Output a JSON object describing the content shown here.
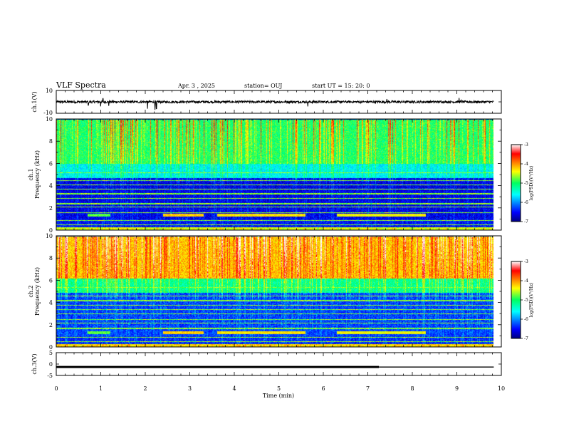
{
  "header": {
    "title": "VLF Spectra",
    "date": "Apr. 3 , 2025",
    "station": "station= OUJ",
    "start": "start UT = 15: 20: 0"
  },
  "chart_data": [
    {
      "type": "line",
      "id": "ch1-waveform",
      "ylabel": "ch.1(V)",
      "ylim": [
        -10,
        10
      ],
      "y_tick_labels": [
        "10",
        "-10"
      ],
      "xlim": [
        0,
        10
      ],
      "baseline": 0,
      "noise_amplitude": 1,
      "spikes": [
        {
          "x": 0.72,
          "y": -3
        },
        {
          "x": 1.0,
          "y": -4
        },
        {
          "x": 1.05,
          "y": 3
        },
        {
          "x": 1.18,
          "y": -3.5
        },
        {
          "x": 2.05,
          "y": -6
        },
        {
          "x": 2.22,
          "y": -7
        },
        {
          "x": 2.25,
          "y": -6
        },
        {
          "x": 5.65,
          "y": -4
        },
        {
          "x": 7.43,
          "y": 2.5
        },
        {
          "x": 9.05,
          "y": 3.5
        },
        {
          "x": 9.1,
          "y": 2
        }
      ],
      "data_end_min": 9.83
    },
    {
      "type": "heatmap",
      "id": "ch1-spectrogram",
      "ylabel": "ch.1\nFrequency (kHz)",
      "ylim": [
        0,
        10
      ],
      "y_ticks": [
        0,
        2,
        4,
        6,
        8,
        10
      ],
      "xlim": [
        0,
        10
      ],
      "data_end_min": 9.83,
      "colorbar": {
        "label": "log(PSD)(V²/Hz)",
        "range": [
          -7,
          -3
        ],
        "ticks": [
          "-3",
          "-4",
          "-5",
          "-6",
          "-7"
        ]
      },
      "bands": [
        {
          "f_low": 0,
          "f_high": 0.3,
          "level": -4.5
        },
        {
          "f_low": 0.3,
          "f_high": 1.0,
          "level": -6.5
        },
        {
          "f_low": 1.0,
          "f_high": 4.7,
          "level": -6.6
        },
        {
          "f_low": 4.7,
          "f_high": 6.0,
          "level": -5.6
        },
        {
          "f_low": 6.0,
          "f_high": 10.0,
          "level": -5.0
        }
      ],
      "tone_lines_khz": [
        0.5,
        0.9,
        1.6,
        2.1,
        2.4,
        2.9,
        3.3,
        3.7,
        4.1,
        4.5,
        5.2
      ],
      "interference_segments": [
        {
          "t0": 0.7,
          "t1": 1.2,
          "f": 1.4,
          "level": -4.8
        },
        {
          "t0": 2.4,
          "t1": 3.3,
          "f": 1.4,
          "level": -4.2
        },
        {
          "t0": 3.6,
          "t1": 5.6,
          "f": 1.4,
          "level": -4.3
        },
        {
          "t0": 6.3,
          "t1": 8.3,
          "f": 1.4,
          "level": -4.4
        }
      ],
      "vertical_streak_density": 0.35
    },
    {
      "type": "heatmap",
      "id": "ch2-spectrogram",
      "ylabel": "ch.2\nFrequency (kHz)",
      "ylim": [
        0,
        10
      ],
      "y_ticks": [
        0,
        2,
        4,
        6,
        8,
        10
      ],
      "xlim": [
        0,
        10
      ],
      "data_end_min": 9.83,
      "colorbar": {
        "label": "log(PSD)(V²/Hz)",
        "range": [
          -7,
          -3
        ],
        "ticks": [
          "-3",
          "-4",
          "-5",
          "-6",
          "-7"
        ]
      },
      "bands": [
        {
          "f_low": 0,
          "f_high": 0.3,
          "level": -4.3
        },
        {
          "f_low": 0.3,
          "f_high": 1.0,
          "level": -6.4
        },
        {
          "f_low": 1.0,
          "f_high": 4.9,
          "level": -6.3
        },
        {
          "f_low": 4.9,
          "f_high": 6.2,
          "level": -5.2
        },
        {
          "f_low": 6.2,
          "f_high": 10.0,
          "level": -4.2
        }
      ],
      "tone_lines_khz": [
        0.5,
        0.9,
        1.7,
        2.2,
        2.5,
        3.0,
        3.4,
        3.8,
        4.2,
        4.6,
        5.4
      ],
      "interference_segments": [
        {
          "t0": 0.7,
          "t1": 1.2,
          "f": 1.3,
          "level": -4.8
        },
        {
          "t0": 2.4,
          "t1": 3.3,
          "f": 1.3,
          "level": -4.2
        },
        {
          "t0": 3.6,
          "t1": 5.6,
          "f": 1.3,
          "level": -4.3
        },
        {
          "t0": 6.3,
          "t1": 8.3,
          "f": 1.3,
          "level": -4.4
        }
      ],
      "vertical_streak_density": 0.4
    },
    {
      "type": "line",
      "id": "ch3-signal",
      "ylabel": "ch.3(V)",
      "ylim": [
        -5,
        5
      ],
      "y_tick_labels": [
        "5",
        "0",
        "-5"
      ],
      "xlim": [
        0,
        10
      ],
      "x": [
        0,
        7.25,
        7.25,
        9.83
      ],
      "y": [
        -1.3,
        -1.3,
        -1.3,
        -1.3
      ],
      "thick_until_min": 7.25
    }
  ],
  "x_axis": {
    "label": "Time (min)",
    "ticks": [
      "0",
      "1",
      "2",
      "3",
      "4",
      "5",
      "6",
      "7",
      "8",
      "9",
      "10"
    ]
  }
}
